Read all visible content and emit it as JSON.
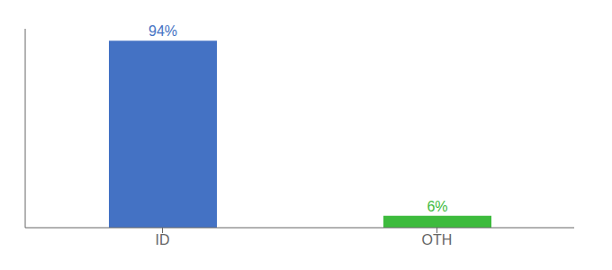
{
  "chart_data": {
    "type": "bar",
    "categories": [
      "ID",
      "OTH"
    ],
    "values": [
      94,
      6
    ],
    "value_labels": [
      "94%",
      "6%"
    ],
    "colors": [
      "#4472c4",
      "#3dbb3d"
    ],
    "ylim": [
      0,
      100
    ],
    "grid": false,
    "data_labels": true,
    "tick_labels": "x"
  }
}
